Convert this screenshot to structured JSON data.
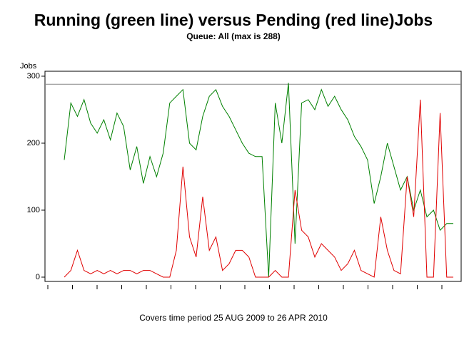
{
  "chart_data": {
    "type": "line",
    "title": "Running (green line) versus Pending (red line)Jobs",
    "subtitle": "Queue: All (max is 288)",
    "y_label": "Jobs",
    "footnote": "Covers time period 25 AUG 2009 to 26 APR 2010",
    "categories": [
      null,
      null,
      null,
      null,
      null,
      null,
      null,
      null,
      null,
      null,
      null,
      null,
      null,
      null,
      null,
      null,
      null,
      null,
      null,
      null,
      null,
      null,
      null,
      null,
      null,
      null,
      null,
      null,
      null,
      null,
      null,
      null,
      null,
      null,
      null,
      null,
      null,
      null,
      null,
      null,
      null,
      null,
      null,
      null,
      null,
      null,
      null,
      null,
      null,
      null,
      null,
      null,
      null,
      null,
      null,
      null,
      null,
      null,
      null,
      null
    ],
    "series": [
      {
        "name": "Running",
        "color": "#008000",
        "values": [
          175,
          260,
          240,
          265,
          230,
          215,
          235,
          205,
          245,
          225,
          160,
          195,
          140,
          180,
          150,
          185,
          260,
          270,
          280,
          200,
          190,
          240,
          270,
          280,
          255,
          240,
          220,
          200,
          185,
          180,
          180,
          0,
          260,
          200,
          290,
          50,
          260,
          265,
          250,
          280,
          255,
          270,
          250,
          235,
          210,
          195,
          175,
          110,
          150,
          200,
          165,
          130,
          150,
          100,
          130,
          90,
          100,
          70,
          80,
          80
        ]
      },
      {
        "name": "Pending",
        "color": "#e00000",
        "values": [
          0,
          10,
          40,
          10,
          5,
          10,
          5,
          10,
          5,
          10,
          10,
          5,
          10,
          10,
          5,
          0,
          0,
          40,
          165,
          60,
          30,
          120,
          40,
          60,
          10,
          20,
          40,
          40,
          30,
          0,
          0,
          0,
          10,
          0,
          0,
          130,
          70,
          60,
          30,
          50,
          40,
          30,
          10,
          20,
          40,
          10,
          5,
          0,
          90,
          40,
          10,
          5,
          150,
          90,
          265,
          0,
          0,
          245,
          0,
          0
        ]
      }
    ],
    "reference_line": 288,
    "ylim": [
      -6.4,
      307.4
    ],
    "yticks": [
      0,
      100,
      200,
      300
    ]
  }
}
